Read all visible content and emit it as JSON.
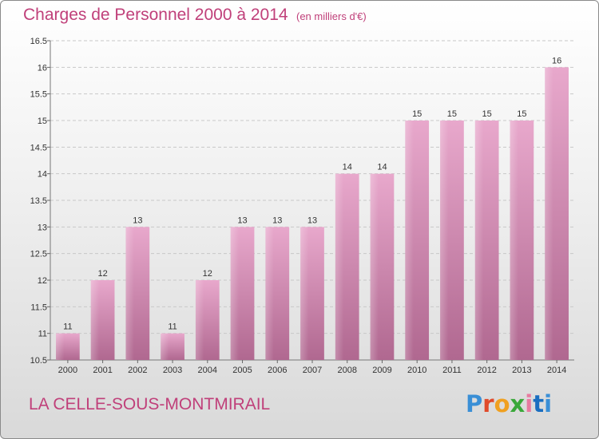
{
  "header": {
    "title": "Charges de Personnel 2000 à 2014",
    "subtitle": "(en milliers d'€)"
  },
  "footer": {
    "commune": "LA CELLE-SOUS-MONTMIRAIL",
    "logo": "Proxiti"
  },
  "colors": {
    "title": "#c0407a",
    "bar_top": "#e8a8cc",
    "bar_bottom": "#b06890"
  },
  "chart_data": {
    "type": "bar",
    "categories": [
      "2000",
      "2001",
      "2002",
      "2003",
      "2004",
      "2005",
      "2006",
      "2007",
      "2008",
      "2009",
      "2010",
      "2011",
      "2012",
      "2013",
      "2014"
    ],
    "values": [
      11,
      12,
      13,
      11,
      12,
      13,
      13,
      13,
      14,
      14,
      15,
      15,
      15,
      15,
      16
    ],
    "data_labels": [
      "11",
      "12",
      "13",
      "11",
      "12",
      "13",
      "13",
      "13",
      "14",
      "14",
      "15",
      "15",
      "15",
      "15",
      "16"
    ],
    "yticks": [
      "10.5",
      "11",
      "11.5",
      "12",
      "12.5",
      "13",
      "13.5",
      "14",
      "14.5",
      "15",
      "15.5",
      "16",
      "16.5"
    ],
    "ylim": [
      10.5,
      16.5
    ],
    "grid": true,
    "legend": "none"
  }
}
